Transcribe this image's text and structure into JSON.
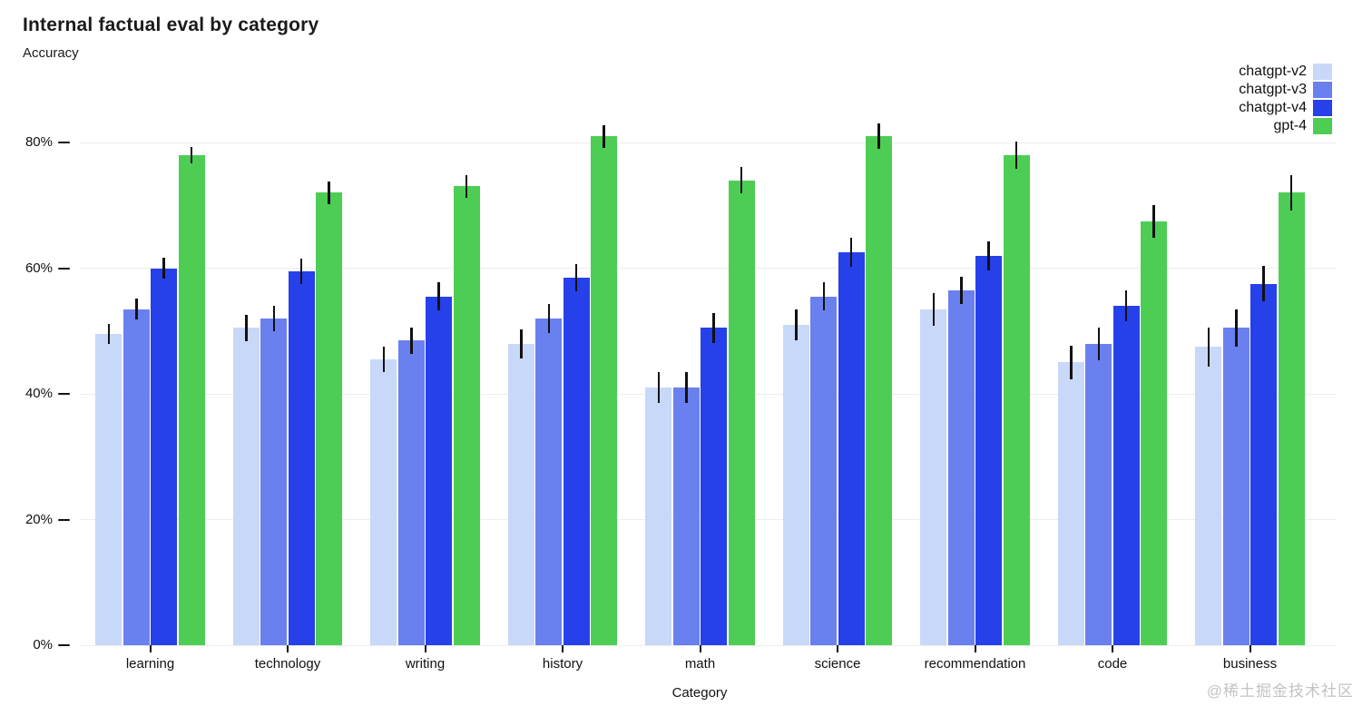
{
  "chart_data": {
    "type": "bar",
    "title": "Internal factual eval by category",
    "ylabel": "Accuracy",
    "xlabel": "Category",
    "categories": [
      "learning",
      "technology",
      "writing",
      "history",
      "math",
      "science",
      "recommendation",
      "code",
      "business"
    ],
    "series": [
      {
        "name": "chatgpt-v2",
        "color": "#c8d8f8",
        "values": [
          49.5,
          50.5,
          45.5,
          48.0,
          41.0,
          51.0,
          53.5,
          45.0,
          47.5
        ],
        "errors": [
          1.6,
          2.1,
          2.0,
          2.3,
          2.5,
          2.5,
          2.6,
          2.7,
          3.1
        ]
      },
      {
        "name": "chatgpt-v3",
        "color": "#6a80ef",
        "values": [
          53.5,
          52.0,
          48.5,
          52.0,
          41.0,
          55.5,
          56.5,
          48.0,
          50.5
        ],
        "errors": [
          1.6,
          2.0,
          2.1,
          2.3,
          2.5,
          2.2,
          2.2,
          2.6,
          3.0
        ]
      },
      {
        "name": "chatgpt-v4",
        "color": "#2640ea",
        "values": [
          60.0,
          59.5,
          55.5,
          58.5,
          50.5,
          62.5,
          62.0,
          54.0,
          57.5
        ],
        "errors": [
          1.7,
          2.0,
          2.2,
          2.2,
          2.4,
          2.3,
          2.3,
          2.5,
          2.8
        ]
      },
      {
        "name": "gpt-4",
        "color": "#4ecd55",
        "values": [
          78.0,
          72.0,
          73.0,
          81.0,
          74.0,
          81.0,
          78.0,
          67.5,
          72.0
        ],
        "errors": [
          1.3,
          1.8,
          1.8,
          1.8,
          2.1,
          2.0,
          2.2,
          2.6,
          2.8
        ]
      }
    ],
    "y_ticks": [
      "0%",
      "20%",
      "40%",
      "60%",
      "80%"
    ],
    "ylim": [
      0,
      100
    ],
    "grid": true,
    "error_bars": true,
    "legend_position": "top-right"
  },
  "watermark": {
    "text": "@稀土掘金技术社区",
    "color": "#c3c3c3"
  }
}
